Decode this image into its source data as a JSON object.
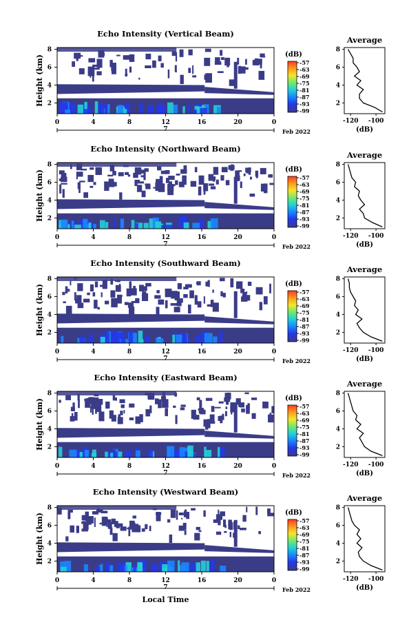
{
  "chart_data": [
    {
      "type": "heatmap",
      "title": "Echo Intensity (Vertical Beam)",
      "ylabel": "Height (km)",
      "x_ticks": [
        "0",
        "4",
        "8",
        "12",
        "16",
        "20",
        "0"
      ],
      "y_ticks": [
        "2",
        "4",
        "6",
        "8"
      ],
      "date_day": "7",
      "date_month_year": "Feb 2022",
      "colorbar": {
        "unit": "(dB)",
        "ticks": [
          "-57",
          "-63",
          "-69",
          "-75",
          "-81",
          "-87",
          "-93",
          "-99"
        ]
      },
      "profile": {
        "title": "Average",
        "xlabel": "(dB)",
        "x_ticks": [
          "-120",
          "-100"
        ],
        "y_ticks": [
          "2",
          "4",
          "6",
          "8"
        ],
        "xlim": [
          -125,
          -93
        ],
        "ylim": [
          0.8,
          8.2
        ],
        "heights": [
          1.0,
          1.5,
          2.0,
          2.5,
          3.0,
          3.5,
          4.0,
          4.5,
          5.0,
          5.5,
          6.0,
          6.5,
          7.0,
          7.5,
          8.0
        ],
        "values": [
          -95,
          -101,
          -110,
          -113,
          -113,
          -110,
          -115,
          -112,
          -117,
          -113,
          -115,
          -118,
          -118,
          -120,
          -122
        ]
      }
    },
    {
      "type": "heatmap",
      "title": "Echo Intensity (Northward Beam)",
      "ylabel": "Height (km)",
      "x_ticks": [
        "0",
        "4",
        "8",
        "12",
        "16",
        "20",
        "0"
      ],
      "y_ticks": [
        "2",
        "4",
        "6",
        "8"
      ],
      "date_day": "7",
      "date_month_year": "Feb 2022",
      "colorbar": {
        "unit": "(dB)",
        "ticks": [
          "-57",
          "-63",
          "-69",
          "-75",
          "-81",
          "-87",
          "-93",
          "-99"
        ]
      },
      "profile": {
        "title": "Average",
        "xlabel": "(dB)",
        "x_ticks": [
          "-120",
          "-100"
        ],
        "y_ticks": [
          "2",
          "4",
          "6",
          "8"
        ],
        "xlim": [
          -125,
          -93
        ],
        "ylim": [
          0.8,
          8.2
        ],
        "heights": [
          1.0,
          1.5,
          2.0,
          2.5,
          3.0,
          3.5,
          4.0,
          4.5,
          5.0,
          5.5,
          6.0,
          6.5,
          7.0,
          7.5,
          8.0
        ],
        "values": [
          -95,
          -103,
          -109,
          -110,
          -113,
          -109,
          -112,
          -114,
          -113,
          -117,
          -116,
          -119,
          -120,
          -121,
          -122
        ]
      }
    },
    {
      "type": "heatmap",
      "title": "Echo Intensity (Southward Beam)",
      "ylabel": "Height (km)",
      "x_ticks": [
        "0",
        "4",
        "8",
        "12",
        "16",
        "20",
        "0"
      ],
      "y_ticks": [
        "2",
        "4",
        "6",
        "8"
      ],
      "date_day": "7",
      "date_month_year": "Feb 2022",
      "colorbar": {
        "unit": "(dB)",
        "ticks": [
          "-57",
          "-63",
          "-69",
          "-75",
          "-81",
          "-87",
          "-93",
          "-99"
        ]
      },
      "profile": {
        "title": "Average",
        "xlabel": "(dB)",
        "x_ticks": [
          "-120",
          "-100"
        ],
        "y_ticks": [
          "2",
          "4",
          "6",
          "8"
        ],
        "xlim": [
          -125,
          -93
        ],
        "ylim": [
          0.8,
          8.2
        ],
        "heights": [
          1.0,
          1.5,
          2.0,
          2.5,
          3.0,
          3.5,
          4.0,
          4.5,
          5.0,
          5.5,
          6.0,
          6.5,
          7.0,
          7.5,
          8.0
        ],
        "values": [
          -95,
          -104,
          -110,
          -113,
          -115,
          -111,
          -116,
          -114,
          -117,
          -116,
          -118,
          -120,
          -121,
          -121,
          -122
        ]
      }
    },
    {
      "type": "heatmap",
      "title": "Echo Intensity (Eastward Beam)",
      "ylabel": "Height (km)",
      "x_ticks": [
        "0",
        "4",
        "8",
        "12",
        "16",
        "20",
        "0"
      ],
      "y_ticks": [
        "2",
        "4",
        "6",
        "8"
      ],
      "date_day": "7",
      "date_month_year": "Feb 2022",
      "colorbar": {
        "unit": "(dB)",
        "ticks": [
          "-57",
          "-63",
          "-69",
          "-75",
          "-81",
          "-87",
          "-93",
          "-99"
        ]
      },
      "profile": {
        "title": "Average",
        "xlabel": "(dB)",
        "x_ticks": [
          "-120",
          "-100"
        ],
        "y_ticks": [
          "2",
          "4",
          "6",
          "8"
        ],
        "xlim": [
          -125,
          -93
        ],
        "ylim": [
          0.8,
          8.2
        ],
        "heights": [
          1.0,
          1.5,
          2.0,
          2.5,
          3.0,
          3.5,
          4.0,
          4.5,
          5.0,
          5.5,
          6.0,
          6.5,
          7.0,
          7.5,
          8.0
        ],
        "values": [
          -95,
          -104,
          -109,
          -111,
          -113,
          -110,
          -115,
          -112,
          -116,
          -115,
          -118,
          -119,
          -120,
          -121,
          -122
        ]
      }
    },
    {
      "type": "heatmap",
      "title": "Echo Intensity (Westward Beam)",
      "ylabel": "Height (km)",
      "x_ticks": [
        "0",
        "4",
        "8",
        "12",
        "16",
        "20",
        "0"
      ],
      "y_ticks": [
        "2",
        "4",
        "6",
        "8"
      ],
      "date_day": "7",
      "date_month_year": "Feb 2022",
      "xlabel": "Local Time",
      "colorbar": {
        "unit": "(dB)",
        "ticks": [
          "-57",
          "-63",
          "-69",
          "-75",
          "-81",
          "-87",
          "-93",
          "-99"
        ]
      },
      "profile": {
        "title": "Average",
        "xlabel": "(dB)",
        "x_ticks": [
          "-120",
          "-100"
        ],
        "y_ticks": [
          "2",
          "4",
          "6",
          "8"
        ],
        "xlim": [
          -125,
          -93
        ],
        "ylim": [
          0.8,
          8.2
        ],
        "heights": [
          1.0,
          1.5,
          2.0,
          2.5,
          3.0,
          3.5,
          4.0,
          4.5,
          5.0,
          5.5,
          6.0,
          6.5,
          7.0,
          7.5,
          8.0
        ],
        "values": [
          -95,
          -104,
          -110,
          -113,
          -114,
          -111,
          -115,
          -112,
          -115,
          -113,
          -117,
          -119,
          -120,
          -121,
          -122
        ]
      }
    }
  ],
  "colors": {
    "scale": [
      "#ff3a20",
      "#ff9b1e",
      "#f5e62a",
      "#70e870",
      "#23cfd8",
      "#1a86ff",
      "#2538e8",
      "#3a3b8c"
    ],
    "layer": "#3b3c88"
  }
}
